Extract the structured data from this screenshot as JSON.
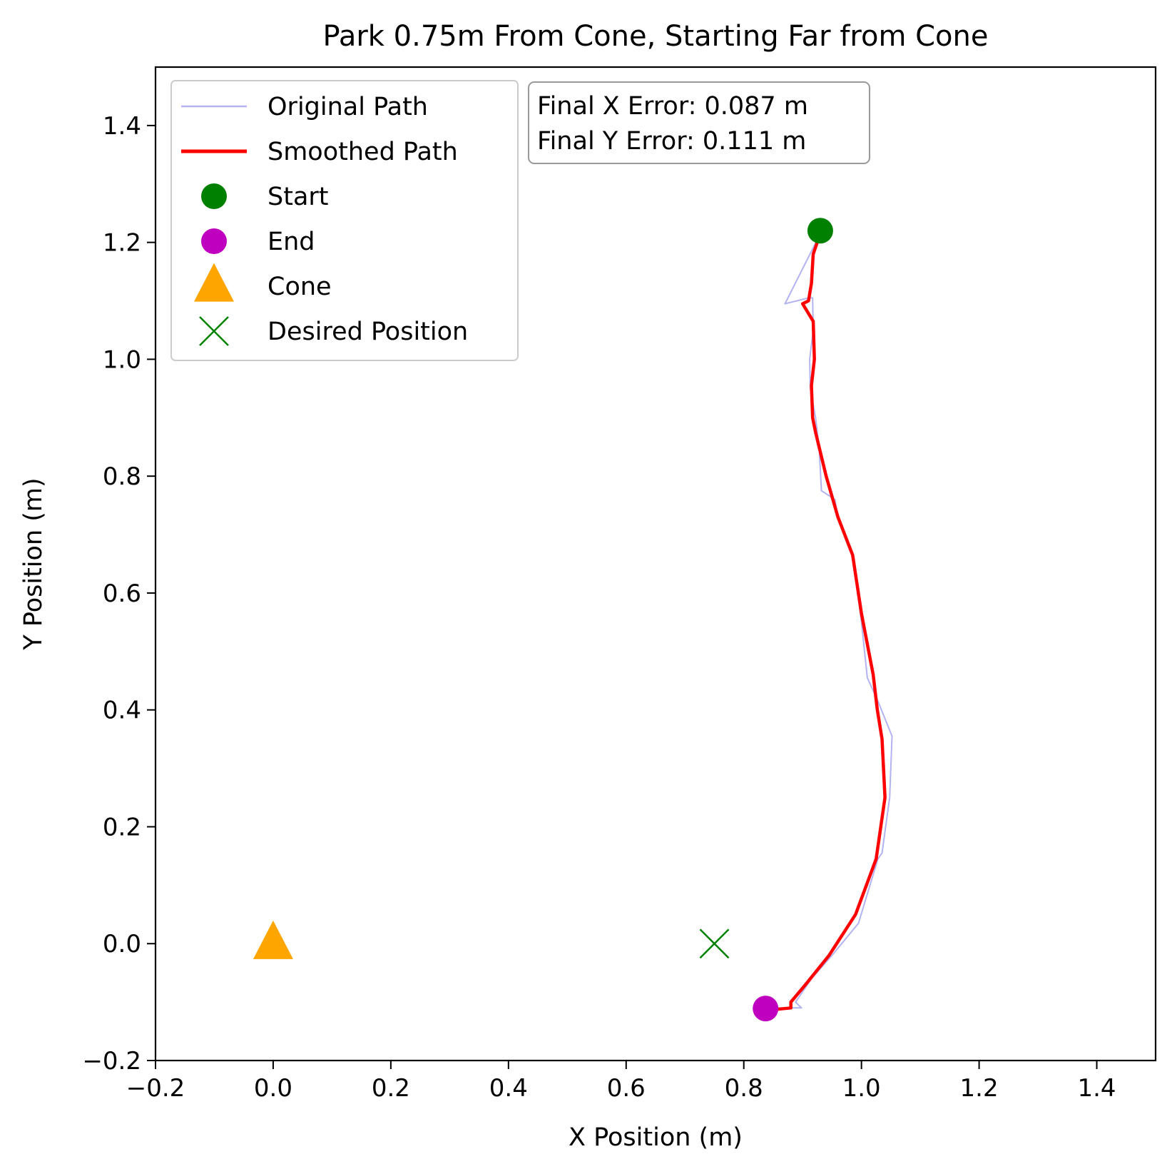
{
  "chart_data": {
    "type": "line",
    "title": "Park 0.75m From Cone, Starting Far from Cone",
    "xlabel": "X Position (m)",
    "ylabel": "Y Position (m)",
    "xlim": [
      -0.2,
      1.5
    ],
    "ylim": [
      -0.2,
      1.5
    ],
    "xticks": [
      -0.2,
      0.0,
      0.2,
      0.4,
      0.6,
      0.8,
      1.0,
      1.2,
      1.4
    ],
    "yticks": [
      -0.2,
      0.0,
      0.2,
      0.4,
      0.6,
      0.8,
      1.0,
      1.2,
      1.4
    ],
    "xtick_labels": [
      "−0.2",
      "0.0",
      "0.2",
      "0.4",
      "0.6",
      "0.8",
      "1.0",
      "1.2",
      "1.4"
    ],
    "ytick_labels": [
      "−0.2",
      "0.0",
      "0.2",
      "0.4",
      "0.6",
      "0.8",
      "1.0",
      "1.2",
      "1.4"
    ],
    "grid": false,
    "legend_position": "top-left",
    "series": [
      {
        "name": "Original Path",
        "kind": "line",
        "color": "#b3b3f2",
        "x": [
          0.93,
          0.915,
          0.87,
          0.91,
          0.917,
          0.918,
          0.912,
          0.913,
          0.922,
          0.928,
          0.932,
          0.955,
          0.96,
          0.985,
          1.0,
          1.01,
          1.028,
          1.052,
          1.048,
          1.035,
          1.028,
          0.995,
          0.95,
          0.915,
          0.888,
          0.898,
          0.875,
          0.85,
          0.837
        ],
        "y": [
          1.215,
          1.185,
          1.095,
          1.105,
          1.105,
          1.05,
          1.0,
          0.95,
          0.9,
          0.85,
          0.775,
          0.76,
          0.73,
          0.665,
          0.55,
          0.455,
          0.415,
          0.355,
          0.25,
          0.155,
          0.145,
          0.035,
          -0.02,
          -0.06,
          -0.1,
          -0.11,
          -0.11,
          -0.11,
          -0.11
        ]
      },
      {
        "name": "Smoothed Path",
        "kind": "line",
        "color": "#ff0000",
        "x": [
          0.93,
          0.918,
          0.915,
          0.91,
          0.9,
          0.918,
          0.92,
          0.915,
          0.917,
          0.922,
          0.94,
          0.96,
          0.985,
          1.0,
          1.02,
          1.027,
          1.035,
          1.04,
          1.025,
          0.99,
          0.945,
          0.905,
          0.88,
          0.88,
          0.86,
          0.84
        ],
        "y": [
          1.215,
          1.18,
          1.13,
          1.1,
          1.095,
          1.065,
          1.0,
          0.955,
          0.9,
          0.875,
          0.8,
          0.73,
          0.665,
          0.565,
          0.46,
          0.4,
          0.35,
          0.25,
          0.145,
          0.05,
          -0.02,
          -0.07,
          -0.1,
          -0.11,
          -0.112,
          -0.112
        ]
      },
      {
        "name": "Start",
        "kind": "marker",
        "marker": "circle",
        "color": "#008000",
        "x": [
          0.93
        ],
        "y": [
          1.22
        ]
      },
      {
        "name": "End",
        "kind": "marker",
        "marker": "circle",
        "color": "#bf00bf",
        "x": [
          0.837
        ],
        "y": [
          -0.111
        ]
      },
      {
        "name": "Cone",
        "kind": "marker",
        "marker": "triangle",
        "color": "#ffa500",
        "x": [
          0.0
        ],
        "y": [
          0.0
        ]
      },
      {
        "name": "Desired Position",
        "kind": "marker",
        "marker": "x",
        "color": "#008000",
        "x": [
          0.75
        ],
        "y": [
          0.0
        ]
      }
    ],
    "annotation": {
      "lines": [
        "Final X Error: 0.087 m",
        "Final Y Error: 0.111 m"
      ],
      "position": "top-center",
      "border_color": "#999999"
    }
  }
}
